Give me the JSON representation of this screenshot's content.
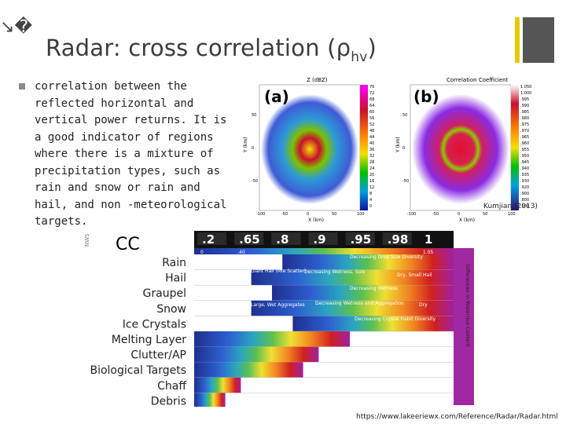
{
  "corner_glyph": "↘",
  "corner_glyph2": "�",
  "title_main": "Radar: cross correlation (ρ",
  "title_sub": "hv",
  "title_end": ")",
  "body": "correlation between the reflected horizontal and vertical power returns. It is a good indicator of regions where there is a mixture of precipitation types, such as rain and snow or rain and hail, and non -meteorological targets.",
  "radar": {
    "panel_a_label": "(a)",
    "panel_b_label": "(b)",
    "panel_a_title": "Z (dBZ)",
    "panel_b_title": "Correlation Coefficient",
    "y_axis_label": "Y (km)",
    "x_axis_label": "X (km)",
    "x_ticks": [
      "-100",
      "-50",
      "0",
      "50",
      "100"
    ],
    "y_ticks": [
      "50",
      "0",
      "-50"
    ],
    "dbz_scale": [
      "76",
      "72",
      "68",
      "64",
      "60",
      "56",
      "52",
      "48",
      "44",
      "40",
      "36",
      "32",
      "28",
      "24",
      "20",
      "16",
      "12",
      "8",
      "4",
      "0"
    ],
    "cc_scale": [
      "1.050",
      "1.000",
      ".995",
      ".990",
      ".985",
      ".980",
      ".975",
      ".970",
      ".965",
      ".960",
      ".955",
      ".950",
      ".945",
      ".940",
      ".935",
      ".930",
      ".920",
      ".900",
      ".800",
      ".500"
    ],
    "caption": "Kumjian (2013)",
    "colors": {
      "dbz_low": "#3e5bd6",
      "dbz_mid": "#f0e020",
      "dbz_high": "#c8102e",
      "cc_bg": "#8a2be2",
      "cc_ring": "#7ec000"
    }
  },
  "cc_figure": {
    "header": "CC",
    "side_label": "NWS",
    "right_label": "Differences in Water/Ice Content",
    "scale_values": [
      ".2",
      ".65",
      ".8",
      ".9",
      ".95",
      ".98",
      "1"
    ],
    "scale_sub": [
      "0",
      ".40",
      "",
      "",
      "",
      "",
      "1.05"
    ],
    "categories": [
      "Rain",
      "Hail",
      "Graupel",
      "Snow",
      "Ice Crystals",
      "Melting Layer",
      "Clutter/AP",
      "Biological Targets",
      "Chaff",
      "Debris"
    ],
    "annotations": {
      "drop_size": "Decreasing Drop Size Diversity",
      "giant_hail": "Giant Hail (Mie Scatter)",
      "wetness_size": "Decreasing Wetness, Size",
      "dry_small_hail": "Dry, Small Hail",
      "decreasing_wetness": "Decreasing Wetness",
      "large_wet": "Large, Wet Aggregates",
      "wetness_aggregation": "Decreasing Wetness and Aggregation",
      "dry": "Dry",
      "crystal_habit": "Decreasing Crystal Habit Diversity"
    }
  },
  "source_url": "https://www.lakeeriewx.com/Reference/Radar/Radar.html"
}
